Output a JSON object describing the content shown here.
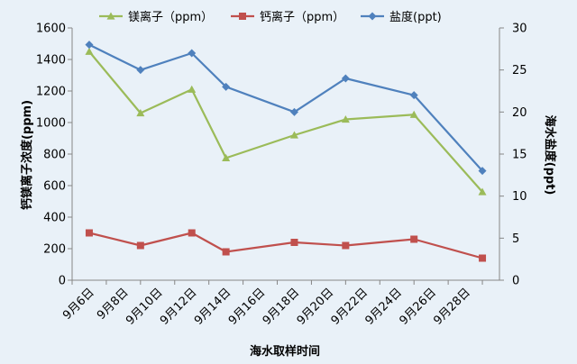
{
  "chart_data": {
    "type": "line",
    "xlabel": "海水取样时间",
    "ylabel_left": "钙镁离子浓度(ppm)",
    "ylabel_right": "海水盐度(ppt)",
    "x_tick_labels": [
      "9月6日",
      "9月8日",
      "9月10日",
      "9月12日",
      "9月14日",
      "9月16日",
      "9月18日",
      "9月20日",
      "9月22日",
      "9月24日",
      "9月26日",
      "9月28日"
    ],
    "xlim": [
      5,
      30
    ],
    "ylim_left": [
      0,
      1600
    ],
    "ylim_right": [
      0,
      30
    ],
    "y_left_ticks": [
      0,
      200,
      400,
      600,
      800,
      1000,
      1200,
      1400,
      1600
    ],
    "y_right_ticks": [
      0,
      5,
      10,
      15,
      20,
      25,
      30
    ],
    "grid": false,
    "legend_position": "top",
    "series": [
      {
        "name": "镁离子（ppm）",
        "axis": "left",
        "color": "#9bbb59",
        "marker": "triangle",
        "x": [
          6,
          9,
          12,
          14,
          18,
          21,
          25,
          29
        ],
        "y": [
          1450,
          1060,
          1210,
          775,
          920,
          1020,
          1050,
          560
        ]
      },
      {
        "name": "钙离子（ppm）",
        "axis": "left",
        "color": "#c0504d",
        "marker": "square",
        "x": [
          6,
          9,
          12,
          14,
          18,
          21,
          25,
          29
        ],
        "y": [
          300,
          220,
          300,
          180,
          240,
          220,
          260,
          140
        ]
      },
      {
        "name": "盐度(ppt)",
        "axis": "right",
        "color": "#4f81bd",
        "marker": "diamond",
        "x": [
          6,
          9,
          12,
          14,
          18,
          21,
          25,
          29
        ],
        "y": [
          28,
          25,
          27,
          23,
          20,
          24,
          22,
          13
        ]
      }
    ]
  }
}
